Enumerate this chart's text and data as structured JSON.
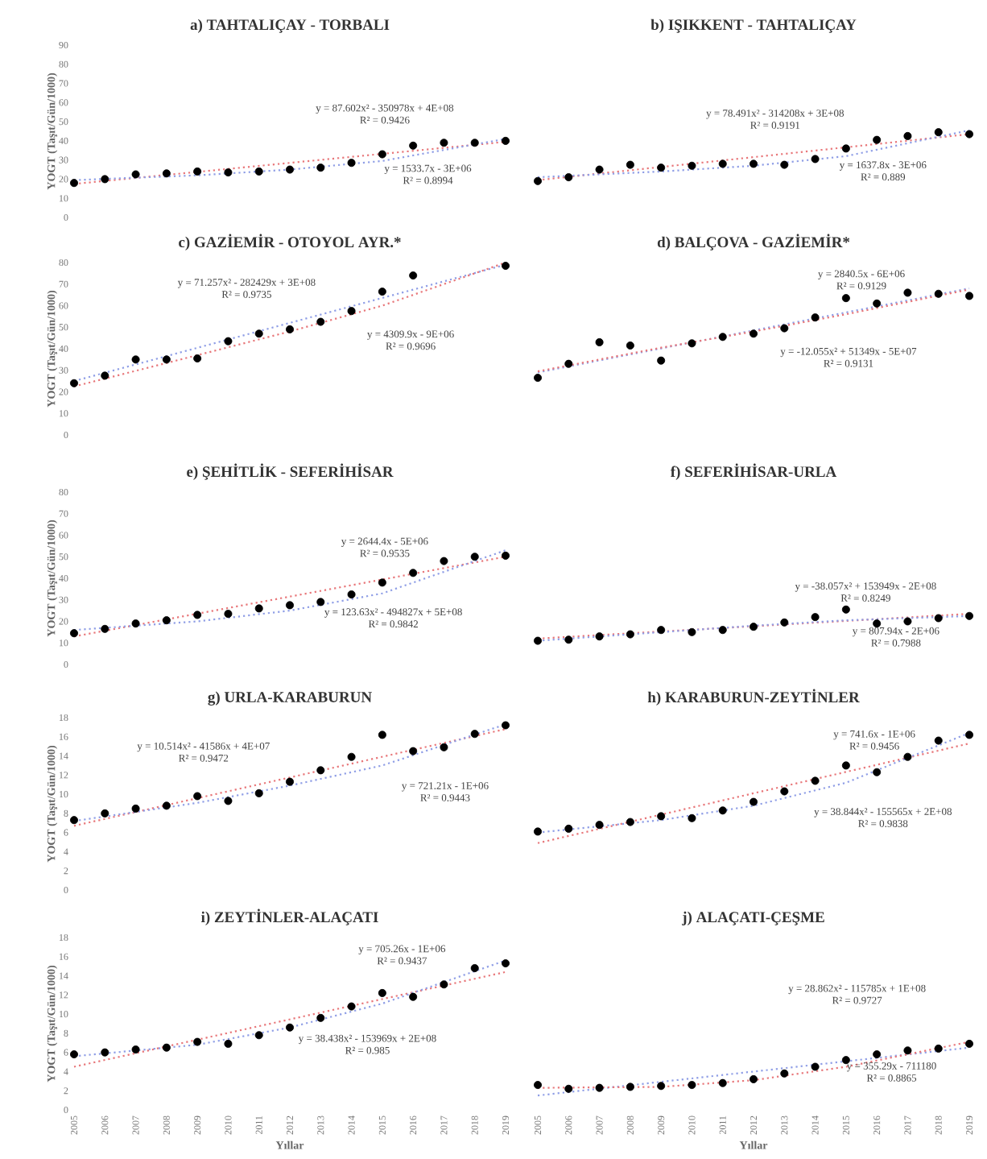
{
  "chart_data": [
    {
      "type": "scatter",
      "title": "a) TAHTALIÇAY - TORBALI",
      "ylabel": "YOGT (Taşıt/Gün/1000)",
      "x": [
        2005,
        2006,
        2007,
        2008,
        2009,
        2010,
        2011,
        2012,
        2013,
        2014,
        2015,
        2016,
        2017,
        2018,
        2019
      ],
      "xlim": [
        2005,
        2019
      ],
      "xticks": [
        2005,
        2006,
        2007,
        2008,
        2009,
        2010,
        2011,
        2012,
        2013,
        2014,
        2015,
        2016,
        2017,
        2018,
        2019
      ],
      "ylim": [
        0,
        90
      ],
      "yticks": [
        0,
        10,
        20,
        30,
        40,
        50,
        60,
        70,
        80,
        90
      ],
      "tick_labels": "y",
      "series": [
        {
          "type": "scatter",
          "marker": "circle",
          "color": "#000000",
          "values": [
            18,
            20,
            22.5,
            23,
            24,
            23.5,
            24,
            25,
            26,
            28.5,
            33,
            37.5,
            39,
            39,
            40
          ]
        },
        {
          "type": "line",
          "line_style": "dotted",
          "color": "#e8777a",
          "x": [
            2005,
            2019
          ],
          "values": [
            17.5,
            39.5
          ]
        },
        {
          "type": "line",
          "line_style": "dotted",
          "color": "#8f9ee6",
          "x": [
            2005,
            2009,
            2012,
            2015,
            2019
          ],
          "values": [
            19.5,
            22,
            25,
            29.5,
            41
          ]
        }
      ],
      "annotations": [
        "y = 87.602x² - 350978x + 4E+08",
        "R² = 0.9426",
        "y = 1533.7x - 3E+06",
        "R² = 0.8994"
      ]
    },
    {
      "type": "scatter",
      "title": "b) IŞIKKENT - TAHTALIÇAY",
      "x": [
        2005,
        2006,
        2007,
        2008,
        2009,
        2010,
        2011,
        2012,
        2013,
        2014,
        2015,
        2016,
        2017,
        2018,
        2019
      ],
      "xlim": [
        2005,
        2019
      ],
      "xticks": [
        2005,
        2006,
        2007,
        2008,
        2009,
        2010,
        2011,
        2012,
        2013,
        2014,
        2015,
        2016,
        2017,
        2018,
        2019
      ],
      "ylim": [
        0,
        90
      ],
      "yticks": [
        0,
        10,
        20,
        30,
        40,
        50,
        60,
        70,
        80,
        90
      ],
      "tick_labels": false,
      "series": [
        {
          "type": "scatter",
          "marker": "circle",
          "color": "#000000",
          "values": [
            19,
            21,
            25,
            27.5,
            26,
            27,
            28,
            28,
            27.5,
            30.5,
            36,
            40.5,
            42.5,
            44.5,
            43.5
          ]
        },
        {
          "type": "line",
          "line_style": "dotted",
          "color": "#e8777a",
          "x": [
            2005,
            2019
          ],
          "values": [
            19.5,
            43.5
          ]
        },
        {
          "type": "line",
          "line_style": "dotted",
          "color": "#8f9ee6",
          "x": [
            2005,
            2009,
            2012,
            2015,
            2019
          ],
          "values": [
            21,
            24,
            27,
            32,
            45.5
          ]
        }
      ],
      "annotations": [
        "y = 78.491x² - 314208x + 3E+08",
        "R² = 0.9191",
        "y = 1637.8x - 3E+06",
        "R² = 0.889"
      ]
    },
    {
      "type": "scatter",
      "title": "c) GAZİEMİR - OTOYOL AYR.*",
      "ylabel": "YOGT (Taşıt/Gün/1000)",
      "x": [
        2005,
        2006,
        2007,
        2008,
        2009,
        2010,
        2011,
        2012,
        2013,
        2014,
        2015,
        2016,
        2017,
        2018,
        2019
      ],
      "xlim": [
        2005,
        2019
      ],
      "xticks": [
        2005,
        2006,
        2007,
        2008,
        2009,
        2010,
        2011,
        2012,
        2013,
        2014,
        2015,
        2016,
        2017,
        2018,
        2019
      ],
      "ylim": [
        0,
        80
      ],
      "yticks": [
        0,
        10,
        20,
        30,
        40,
        50,
        60,
        70,
        80
      ],
      "tick_labels": "y",
      "series": [
        {
          "type": "scatter",
          "marker": "circle",
          "color": "#000000",
          "values": [
            24,
            27.5,
            35,
            35,
            35.5,
            43.5,
            47,
            49,
            52.5,
            57.5,
            66.5,
            74,
            null,
            null,
            78.5
          ]
        },
        {
          "type": "line",
          "line_style": "dotted",
          "color": "#8f9ee6",
          "x": [
            2005,
            2019
          ],
          "values": [
            25,
            79
          ]
        },
        {
          "type": "line",
          "line_style": "dotted",
          "color": "#e8777a",
          "x": [
            2005,
            2009,
            2012,
            2015,
            2019
          ],
          "values": [
            22.5,
            37,
            48,
            60,
            80
          ]
        }
      ],
      "annotations": [
        "y = 71.257x² - 282429x + 3E+08",
        "R² = 0.9735",
        "y = 4309.9x - 9E+06",
        "R² = 0.9696"
      ]
    },
    {
      "type": "scatter",
      "title": "d) BALÇOVA - GAZİEMİR*",
      "x": [
        2005,
        2006,
        2007,
        2008,
        2009,
        2010,
        2011,
        2012,
        2013,
        2014,
        2015,
        2016,
        2017,
        2018,
        2019
      ],
      "xlim": [
        2005,
        2019
      ],
      "xticks": [
        2005,
        2006,
        2007,
        2008,
        2009,
        2010,
        2011,
        2012,
        2013,
        2014,
        2015,
        2016,
        2017,
        2018,
        2019
      ],
      "ylim": [
        0,
        80
      ],
      "yticks": [
        0,
        10,
        20,
        30,
        40,
        50,
        60,
        70,
        80
      ],
      "tick_labels": false,
      "series": [
        {
          "type": "scatter",
          "marker": "circle",
          "color": "#000000",
          "values": [
            26.5,
            33,
            43,
            41.5,
            34.5,
            42.5,
            45.5,
            47,
            49.5,
            54.5,
            63.5,
            61,
            66,
            65.5,
            64.5
          ]
        },
        {
          "type": "line",
          "line_style": "dotted",
          "color": "#8f9ee6",
          "x": [
            2005,
            2019
          ],
          "values": [
            29,
            68
          ]
        },
        {
          "type": "line",
          "line_style": "dotted",
          "color": "#e8777a",
          "x": [
            2005,
            2009,
            2012,
            2015,
            2019
          ],
          "values": [
            29.5,
            40.5,
            48,
            56,
            67.5
          ]
        }
      ],
      "annotations": [
        "y = 2840.5x - 6E+06",
        "R² = 0.9129",
        "y = -12.055x² + 51349x - 5E+07",
        "R² = 0.9131"
      ]
    },
    {
      "type": "scatter",
      "title": "e) ŞEHİTLİK - SEFERİHİSAR",
      "ylabel": "YOGT (Taşıt/Gün/1000)",
      "x": [
        2005,
        2006,
        2007,
        2008,
        2009,
        2010,
        2011,
        2012,
        2013,
        2014,
        2015,
        2016,
        2017,
        2018,
        2019
      ],
      "xlim": [
        2005,
        2019
      ],
      "xticks": [
        2005,
        2006,
        2007,
        2008,
        2009,
        2010,
        2011,
        2012,
        2013,
        2014,
        2015,
        2016,
        2017,
        2018,
        2019
      ],
      "ylim": [
        0,
        80
      ],
      "yticks": [
        0,
        10,
        20,
        30,
        40,
        50,
        60,
        70,
        80
      ],
      "tick_labels": "y",
      "series": [
        {
          "type": "scatter",
          "marker": "circle",
          "color": "#000000",
          "values": [
            14.5,
            16.5,
            19,
            20.5,
            23,
            23.5,
            26,
            27.5,
            29,
            32.5,
            38,
            42.5,
            48,
            50,
            50.5
          ]
        },
        {
          "type": "line",
          "line_style": "dotted",
          "color": "#e8777a",
          "x": [
            2005,
            2019
          ],
          "values": [
            13,
            50
          ]
        },
        {
          "type": "line",
          "line_style": "dotted",
          "color": "#8f9ee6",
          "x": [
            2005,
            2009,
            2012,
            2015,
            2019
          ],
          "values": [
            16,
            20,
            25,
            33,
            53
          ]
        }
      ],
      "annotations": [
        "y = 2644.4x - 5E+06",
        "R² = 0.9535",
        "y = 123.63x² - 494827x + 5E+08",
        "R² = 0.9842"
      ]
    },
    {
      "type": "scatter",
      "title": "f) SEFERİHİSAR-URLA",
      "x": [
        2005,
        2006,
        2007,
        2008,
        2009,
        2010,
        2011,
        2012,
        2013,
        2014,
        2015,
        2016,
        2017,
        2018,
        2019
      ],
      "xlim": [
        2005,
        2019
      ],
      "xticks": [
        2005,
        2006,
        2007,
        2008,
        2009,
        2010,
        2011,
        2012,
        2013,
        2014,
        2015,
        2016,
        2017,
        2018,
        2019
      ],
      "ylim": [
        0,
        80
      ],
      "yticks": [
        0,
        10,
        20,
        30,
        40,
        50,
        60,
        70,
        80
      ],
      "tick_labels": false,
      "series": [
        {
          "type": "scatter",
          "marker": "circle",
          "color": "#000000",
          "values": [
            11,
            11.5,
            13,
            14,
            16,
            15,
            16,
            17.5,
            19.5,
            22,
            25.5,
            19,
            20,
            21.5,
            22.5
          ]
        },
        {
          "type": "line",
          "line_style": "dotted",
          "color": "#e8777a",
          "x": [
            2005,
            2019
          ],
          "values": [
            12,
            23.5
          ]
        },
        {
          "type": "line",
          "line_style": "dotted",
          "color": "#8f9ee6",
          "x": [
            2005,
            2009,
            2012,
            2015,
            2019
          ],
          "values": [
            11,
            15,
            18,
            20.5,
            22.5
          ]
        }
      ],
      "annotations": [
        "y = -38.057x² + 153949x - 2E+08",
        "R² = 0.8249",
        "y = 807.94x - 2E+06",
        "R² = 0.7988"
      ]
    },
    {
      "type": "scatter",
      "title": "g) URLA-KARABURUN",
      "ylabel": "YOGT (Taşıt/Gün/1000)",
      "x": [
        2005,
        2006,
        2007,
        2008,
        2009,
        2010,
        2011,
        2012,
        2013,
        2014,
        2015,
        2016,
        2017,
        2018,
        2019
      ],
      "xlim": [
        2005,
        2019
      ],
      "xticks": [
        2005,
        2006,
        2007,
        2008,
        2009,
        2010,
        2011,
        2012,
        2013,
        2014,
        2015,
        2016,
        2017,
        2018,
        2019
      ],
      "ylim": [
        0,
        18
      ],
      "yticks": [
        0,
        2,
        4,
        6,
        8,
        10,
        12,
        14,
        16,
        18
      ],
      "tick_labels": "y",
      "series": [
        {
          "type": "scatter",
          "marker": "circle",
          "color": "#000000",
          "values": [
            7.3,
            8,
            8.5,
            8.8,
            9.8,
            9.3,
            10.1,
            11.3,
            12.5,
            13.9,
            16.2,
            14.5,
            14.9,
            16.3,
            17.2
          ]
        },
        {
          "type": "line",
          "line_style": "dotted",
          "color": "#e8777a",
          "x": [
            2005,
            2019
          ],
          "values": [
            6.7,
            16.8
          ]
        },
        {
          "type": "line",
          "line_style": "dotted",
          "color": "#8f9ee6",
          "x": [
            2005,
            2009,
            2012,
            2015,
            2019
          ],
          "values": [
            7.2,
            9.1,
            10.9,
            13,
            17.3
          ]
        }
      ],
      "annotations": [
        "y = 10.514x² - 41586x + 4E+07",
        "R² = 0.9472",
        "y = 721.21x - 1E+06",
        "R² = 0.9443"
      ]
    },
    {
      "type": "scatter",
      "title": "h) KARABURUN-ZEYTİNLER",
      "x": [
        2005,
        2006,
        2007,
        2008,
        2009,
        2010,
        2011,
        2012,
        2013,
        2014,
        2015,
        2016,
        2017,
        2018,
        2019
      ],
      "xlim": [
        2005,
        2019
      ],
      "xticks": [
        2005,
        2006,
        2007,
        2008,
        2009,
        2010,
        2011,
        2012,
        2013,
        2014,
        2015,
        2016,
        2017,
        2018,
        2019
      ],
      "ylim": [
        0,
        18
      ],
      "yticks": [
        0,
        2,
        4,
        6,
        8,
        10,
        12,
        14,
        16,
        18
      ],
      "tick_labels": false,
      "series": [
        {
          "type": "scatter",
          "marker": "circle",
          "color": "#000000",
          "values": [
            6.1,
            6.4,
            6.8,
            7.1,
            7.7,
            7.5,
            8.3,
            9.2,
            10.3,
            11.4,
            13,
            12.3,
            13.9,
            15.6,
            16.2
          ]
        },
        {
          "type": "line",
          "line_style": "dotted",
          "color": "#e8777a",
          "x": [
            2005,
            2019
          ],
          "values": [
            4.9,
            15.3
          ]
        },
        {
          "type": "line",
          "line_style": "dotted",
          "color": "#8f9ee6",
          "x": [
            2005,
            2009,
            2012,
            2015,
            2019
          ],
          "values": [
            6,
            7.3,
            8.8,
            11.2,
            16.4
          ]
        }
      ],
      "annotations": [
        "y = 741.6x - 1E+06",
        "R² = 0.9456",
        "y = 38.844x² - 155565x + 2E+08",
        "R² = 0.9838"
      ]
    },
    {
      "type": "scatter",
      "title": "i) ZEYTİNLER-ALAÇATI",
      "xlabel": "Yıllar",
      "ylabel": "YOGT (Taşıt/Gün/1000)",
      "x": [
        2005,
        2006,
        2007,
        2008,
        2009,
        2010,
        2011,
        2012,
        2013,
        2014,
        2015,
        2016,
        2017,
        2018,
        2019
      ],
      "xlim": [
        2005,
        2019
      ],
      "xticks": [
        2005,
        2006,
        2007,
        2008,
        2009,
        2010,
        2011,
        2012,
        2013,
        2014,
        2015,
        2016,
        2017,
        2018,
        2019
      ],
      "ylim": [
        0,
        18
      ],
      "yticks": [
        0,
        2,
        4,
        6,
        8,
        10,
        12,
        14,
        16,
        18
      ],
      "series": [
        {
          "type": "scatter",
          "marker": "circle",
          "color": "#000000",
          "values": [
            5.8,
            6,
            6.3,
            6.5,
            7.1,
            6.9,
            7.8,
            8.6,
            9.6,
            10.8,
            12.2,
            11.8,
            13.1,
            14.8,
            15.3
          ]
        },
        {
          "type": "line",
          "line_style": "dotted",
          "color": "#e8777a",
          "x": [
            2005,
            2019
          ],
          "values": [
            4.5,
            14.4
          ]
        },
        {
          "type": "line",
          "line_style": "dotted",
          "color": "#8f9ee6",
          "x": [
            2005,
            2009,
            2012,
            2015,
            2019
          ],
          "values": [
            5.6,
            6.8,
            8.6,
            11.1,
            15.6
          ]
        }
      ],
      "annotations": [
        "y = 705.26x - 1E+06",
        "R² = 0.9437",
        "y = 38.438x² - 153969x + 2E+08",
        "R² = 0.985"
      ]
    },
    {
      "type": "scatter",
      "title": "j) ALAÇATI-ÇEŞME",
      "xlabel": "Yıllar",
      "x": [
        2005,
        2006,
        2007,
        2008,
        2009,
        2010,
        2011,
        2012,
        2013,
        2014,
        2015,
        2016,
        2017,
        2018,
        2019
      ],
      "xlim": [
        2005,
        2019
      ],
      "xticks": [
        2005,
        2006,
        2007,
        2008,
        2009,
        2010,
        2011,
        2012,
        2013,
        2014,
        2015,
        2016,
        2017,
        2018,
        2019
      ],
      "ylim": [
        0,
        18
      ],
      "yticks": [
        0,
        2,
        4,
        6,
        8,
        10,
        12,
        14,
        16,
        18
      ],
      "tick_labels": "x",
      "series": [
        {
          "type": "scatter",
          "marker": "circle",
          "color": "#000000",
          "values": [
            2.6,
            2.2,
            2.3,
            2.4,
            2.5,
            2.6,
            2.8,
            3.2,
            3.8,
            4.5,
            5.2,
            5.8,
            6.2,
            6.4,
            6.9
          ]
        },
        {
          "type": "line",
          "line_style": "dotted",
          "color": "#8f9ee6",
          "x": [
            2005,
            2019
          ],
          "values": [
            1.5,
            6.5
          ]
        },
        {
          "type": "line",
          "line_style": "dotted",
          "color": "#e8777a",
          "x": [
            2005,
            2009,
            2012,
            2015,
            2019
          ],
          "values": [
            2.3,
            2.4,
            3.1,
            4.5,
            7.1
          ]
        }
      ],
      "annotations": [
        "y = 28.862x² - 115785x + 1E+08",
        "R² = 0.9727",
        "y = 355.29x - 711180",
        "R² = 0.8865"
      ]
    }
  ]
}
